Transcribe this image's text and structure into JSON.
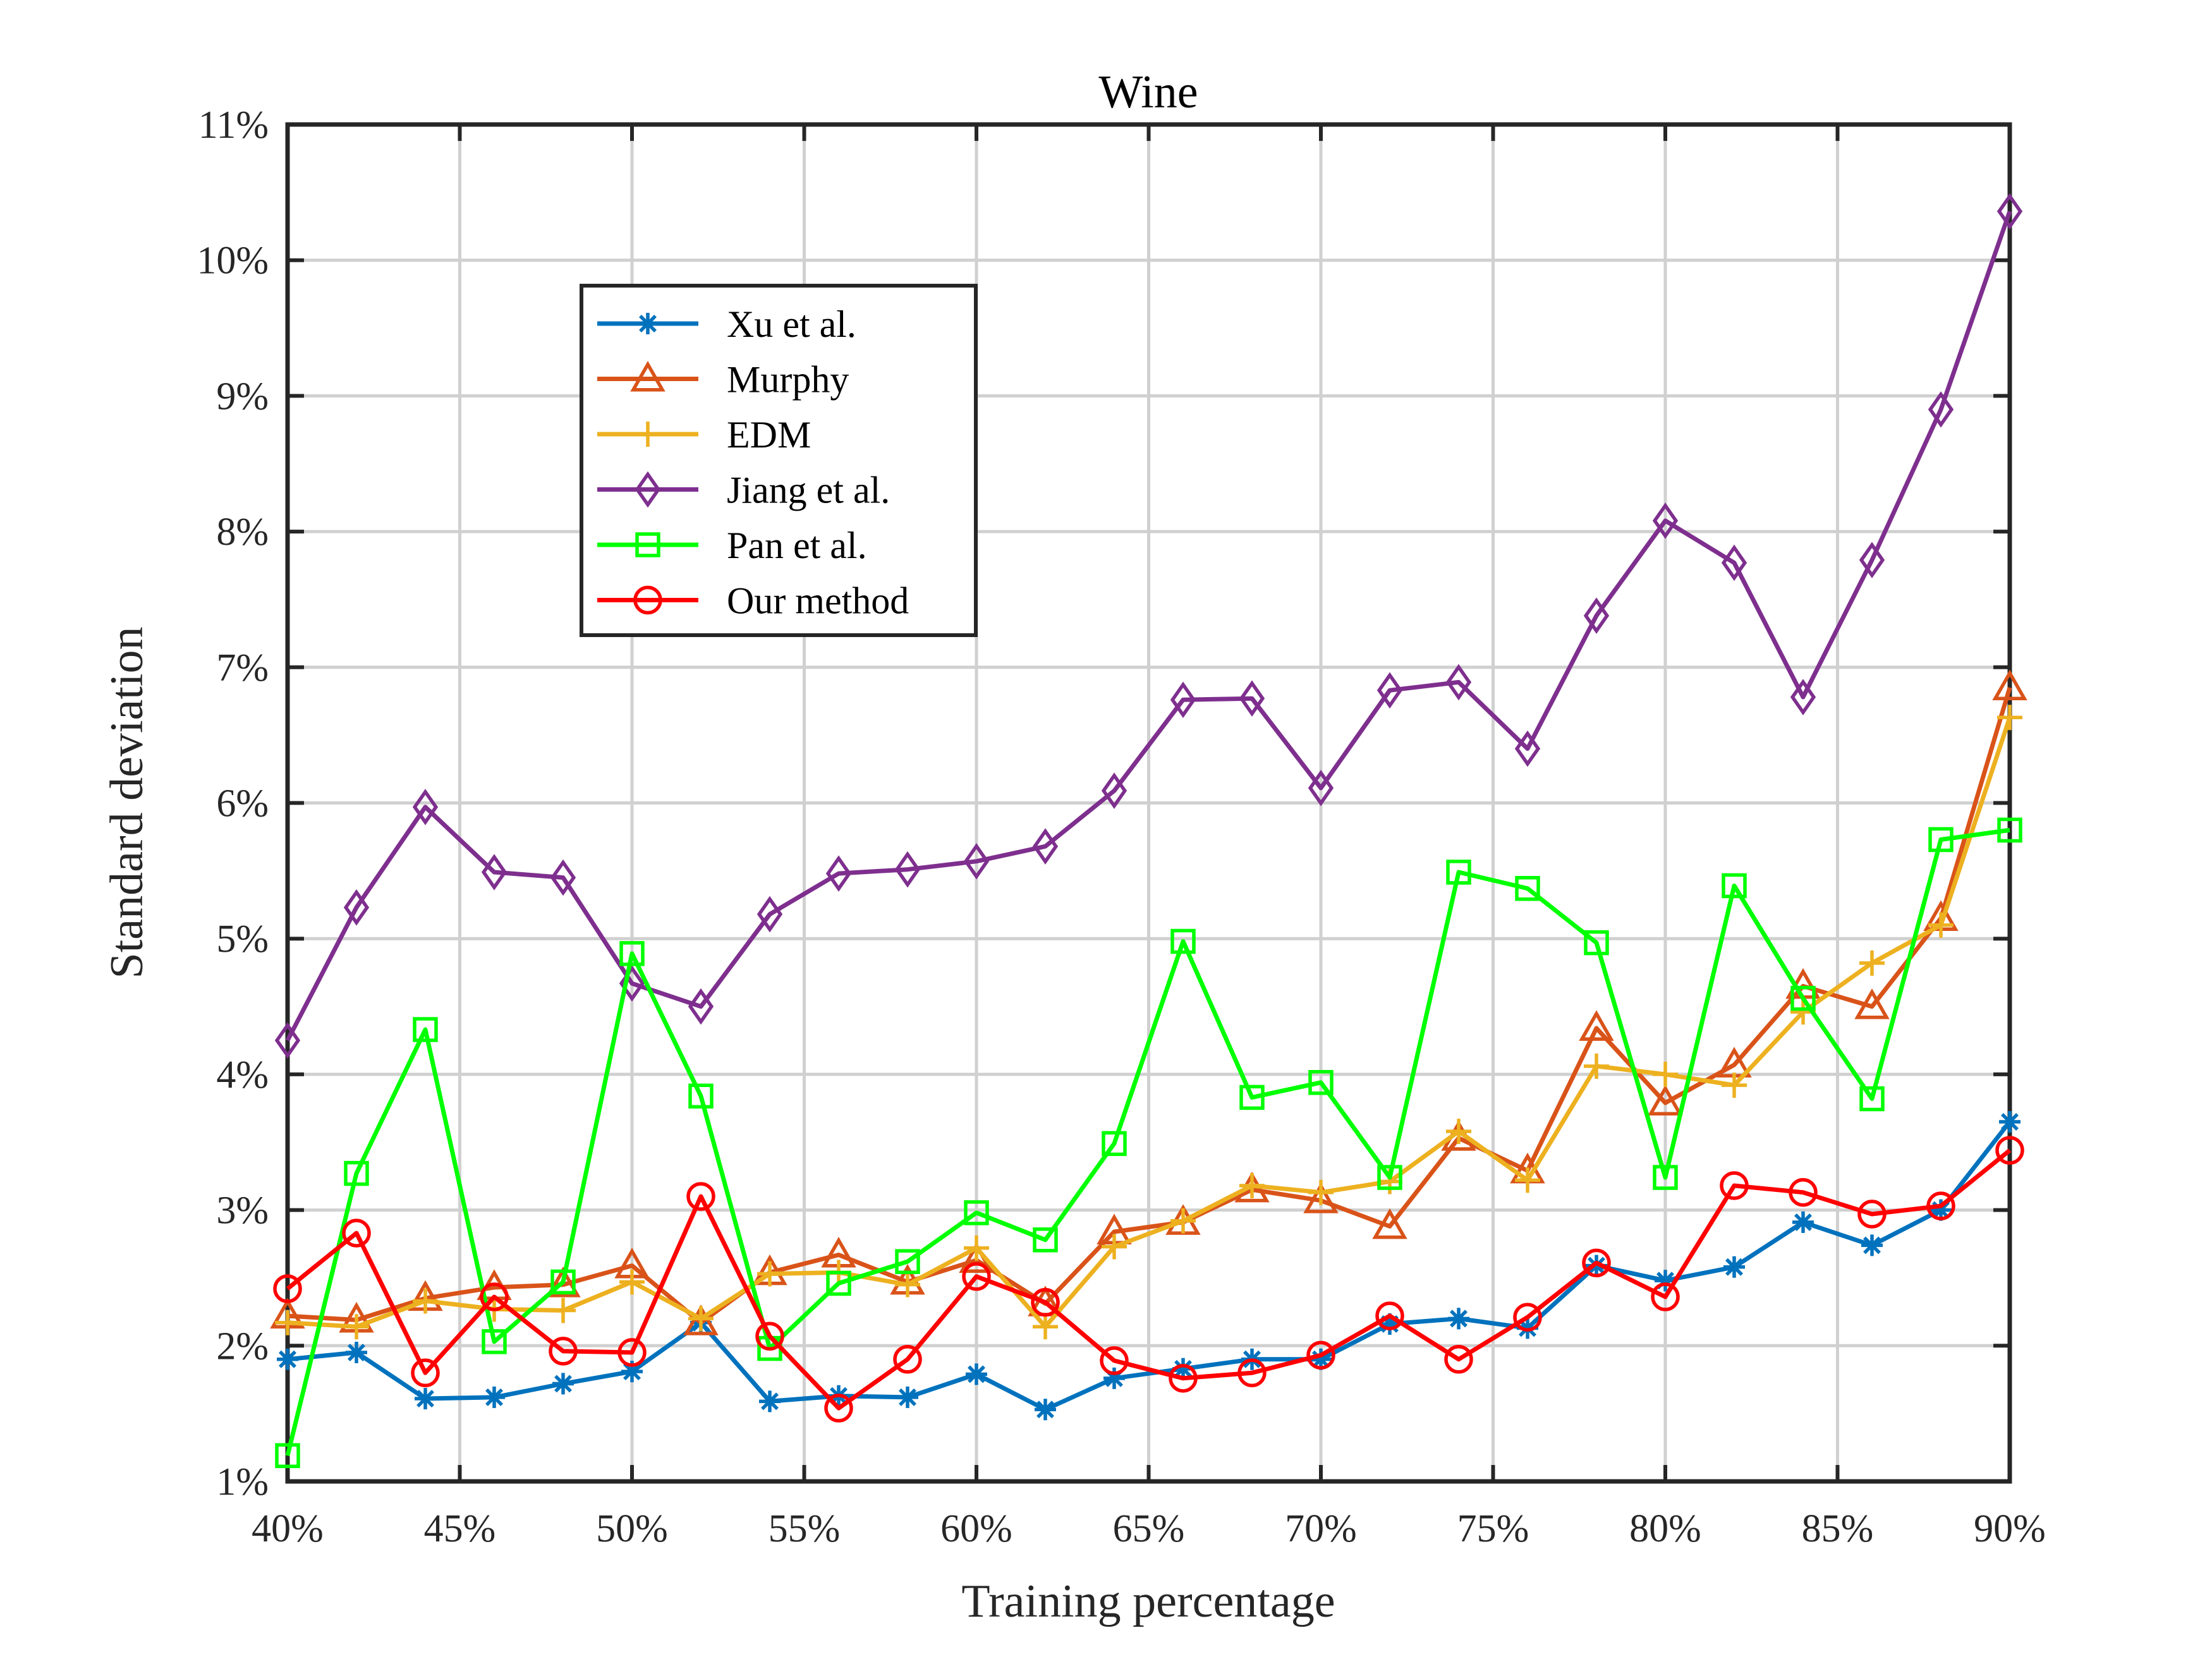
{
  "chart_data": {
    "type": "line",
    "title": "Wine",
    "xlabel": "Training percentage",
    "ylabel": "Standard deviation",
    "xlim": [
      40,
      90
    ],
    "ylim": [
      1,
      11
    ],
    "grid": true,
    "legend_position": "upper-left",
    "x_ticks": [
      40,
      45,
      50,
      55,
      60,
      65,
      70,
      75,
      80,
      85,
      90
    ],
    "x_tick_labels": [
      "40%",
      "45%",
      "50%",
      "55%",
      "60%",
      "65%",
      "70%",
      "75%",
      "80%",
      "85%",
      "90%"
    ],
    "y_ticks": [
      1,
      2,
      3,
      4,
      5,
      6,
      7,
      8,
      9,
      10,
      11
    ],
    "y_tick_labels": [
      "1%",
      "2%",
      "3%",
      "4%",
      "5%",
      "6%",
      "7%",
      "8%",
      "9%",
      "10%",
      "11%"
    ],
    "x": [
      40,
      42,
      44,
      46,
      48,
      50,
      52,
      54,
      56,
      58,
      60,
      62,
      64,
      66,
      68,
      70,
      72,
      74,
      76,
      78,
      80,
      82,
      84,
      86,
      88,
      90
    ],
    "series": [
      {
        "name": "Xu et al.",
        "color": "#0072BD",
        "marker": "asterisk",
        "values": [
          1.9,
          1.95,
          1.61,
          1.62,
          1.72,
          1.81,
          2.17,
          1.59,
          1.63,
          1.62,
          1.79,
          1.53,
          1.76,
          1.83,
          1.9,
          1.9,
          2.16,
          2.2,
          2.13,
          2.59,
          2.48,
          2.58,
          2.91,
          2.74,
          3.0,
          3.65
        ]
      },
      {
        "name": "Murphy",
        "color": "#D95319",
        "marker": "triangle",
        "values": [
          2.22,
          2.19,
          2.35,
          2.43,
          2.45,
          2.59,
          2.17,
          2.54,
          2.67,
          2.47,
          2.63,
          2.31,
          2.84,
          2.91,
          3.15,
          3.07,
          2.88,
          3.53,
          3.29,
          4.34,
          3.79,
          4.07,
          4.65,
          4.5,
          5.15,
          6.85
        ]
      },
      {
        "name": "EDM",
        "color": "#EDB120",
        "marker": "plus",
        "values": [
          2.17,
          2.14,
          2.33,
          2.27,
          2.26,
          2.47,
          2.2,
          2.53,
          2.54,
          2.45,
          2.72,
          2.14,
          2.73,
          2.92,
          3.18,
          3.13,
          3.21,
          3.58,
          3.22,
          4.06,
          4.0,
          3.92,
          4.46,
          4.82,
          5.1,
          6.63
        ]
      },
      {
        "name": "Jiang et al.",
        "color": "#7E2F8E",
        "marker": "diamond",
        "values": [
          4.25,
          5.23,
          5.97,
          5.49,
          5.45,
          4.67,
          4.5,
          5.18,
          5.48,
          5.51,
          5.57,
          5.68,
          6.09,
          6.76,
          6.77,
          6.11,
          6.83,
          6.89,
          6.4,
          7.38,
          8.08,
          7.77,
          6.78,
          7.79,
          8.9,
          10.36
        ]
      },
      {
        "name": "Pan et al.",
        "color": "#00FF00",
        "marker": "square",
        "values": [
          1.19,
          3.27,
          4.33,
          2.03,
          2.47,
          4.89,
          3.84,
          1.98,
          2.46,
          2.62,
          2.98,
          2.78,
          3.49,
          4.98,
          3.83,
          3.94,
          3.24,
          5.49,
          5.37,
          4.97,
          3.24,
          5.39,
          4.56,
          3.82,
          5.73,
          5.8
        ]
      },
      {
        "name": "Our method",
        "color": "#FF0000",
        "marker": "circle",
        "values": [
          2.42,
          2.83,
          1.8,
          2.36,
          1.96,
          1.95,
          3.1,
          2.07,
          1.54,
          1.9,
          2.51,
          2.32,
          1.89,
          1.76,
          1.8,
          1.93,
          2.22,
          1.9,
          2.21,
          2.61,
          2.36,
          3.18,
          3.13,
          2.97,
          3.03,
          3.44
        ]
      }
    ]
  }
}
